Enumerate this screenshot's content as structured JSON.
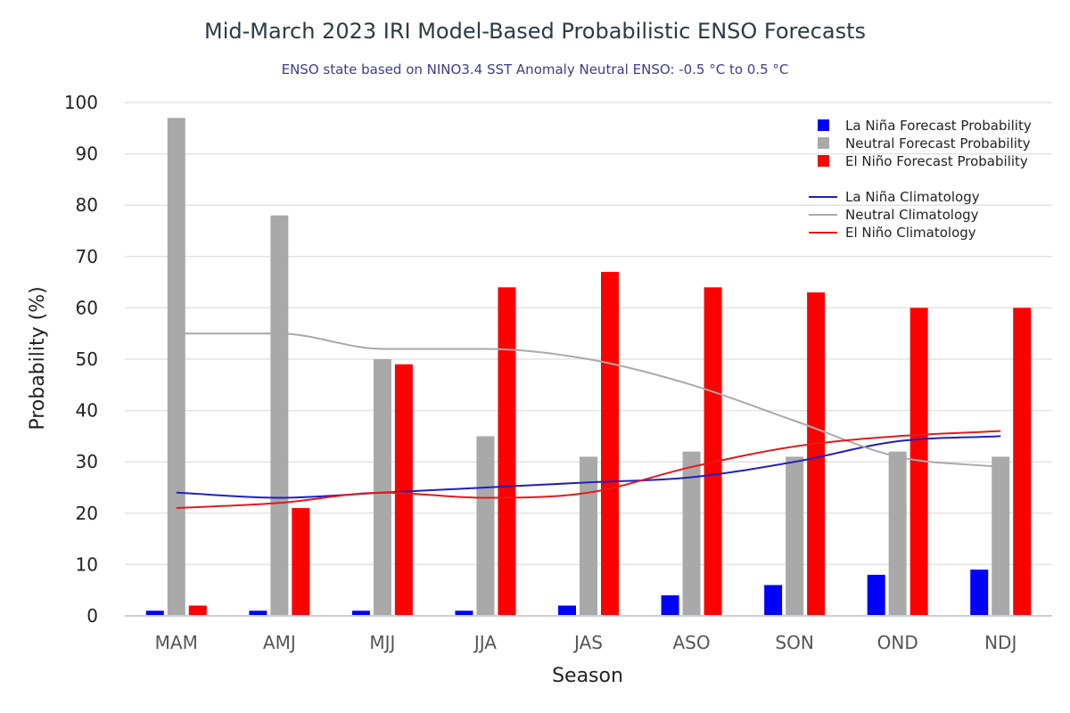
{
  "chart_data": {
    "type": "bar",
    "title": "Mid-March 2023 IRI Model-Based Probabilistic ENSO Forecasts",
    "subtitle": "ENSO state based on NINO3.4 SST Anomaly Neutral ENSO: -0.5 °C to 0.5 °C",
    "xlabel": "Season",
    "ylabel": "Probability (%)",
    "ylim": [
      0,
      100
    ],
    "yticks": [
      0,
      10,
      20,
      30,
      40,
      50,
      60,
      70,
      80,
      90,
      100
    ],
    "grid": true,
    "legend_position": "top-right",
    "categories": [
      "MAM",
      "AMJ",
      "MJJ",
      "JJA",
      "JAS",
      "ASO",
      "SON",
      "OND",
      "NDJ"
    ],
    "series": [
      {
        "name": "La Niña Forecast Probability",
        "type": "bar",
        "color": "#0000ff",
        "values": [
          1,
          1,
          1,
          1,
          2,
          4,
          6,
          8,
          9
        ]
      },
      {
        "name": "Neutral Forecast Probability",
        "type": "bar",
        "color": "#a9a9a9",
        "values": [
          97,
          78,
          50,
          35,
          31,
          32,
          31,
          32,
          31
        ]
      },
      {
        "name": "El Niño Forecast Probability",
        "type": "bar",
        "color": "#ff0000",
        "values": [
          2,
          21,
          49,
          64,
          67,
          64,
          63,
          60,
          60
        ]
      },
      {
        "name": "La Niña Climatology",
        "type": "line",
        "color": "#1f1fbf",
        "values": [
          24,
          23,
          24,
          25,
          26,
          27,
          30,
          34,
          35
        ]
      },
      {
        "name": "Neutral Climatology",
        "type": "line",
        "color": "#a9a9a9",
        "values": [
          55,
          55,
          52,
          52,
          50,
          45,
          38,
          31,
          29
        ]
      },
      {
        "name": "El Niño Climatology",
        "type": "line",
        "color": "#e31a1a",
        "values": [
          21,
          22,
          24,
          23,
          24,
          29,
          33,
          35,
          36
        ]
      }
    ]
  }
}
